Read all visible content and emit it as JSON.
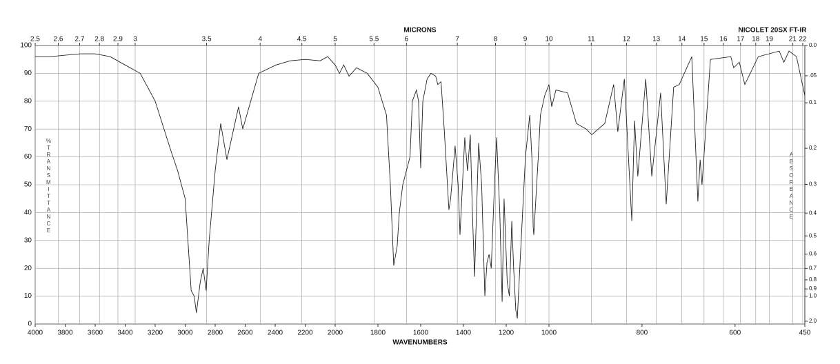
{
  "chart_data": {
    "type": "line",
    "title": "NICOLET 20SX FT-IR",
    "xlabel": "WAVENUMBERS",
    "x2label": "MICRONS",
    "ylabel": "%TRANSMITTANCE",
    "y2label": "ABSORBANCE",
    "color": "#222222",
    "grid": true,
    "xlim": [
      4000,
      450
    ],
    "xbreaks": [
      2000,
      1000
    ],
    "ylim": [
      0,
      100
    ],
    "xticks": [
      4000,
      3800,
      3600,
      3400,
      3200,
      3000,
      2800,
      2600,
      2400,
      2200,
      2000,
      1800,
      1600,
      1400,
      1200,
      1000,
      800,
      600,
      450
    ],
    "yticks": [
      0,
      10,
      20,
      30,
      40,
      50,
      60,
      70,
      80,
      90,
      100
    ],
    "x2ticks": [
      2.5,
      2.6,
      2.7,
      2.8,
      2.9,
      3,
      3.5,
      4,
      4.5,
      5,
      5.5,
      6,
      7,
      8,
      9,
      10,
      11,
      12,
      13,
      14,
      15,
      16,
      17,
      18,
      19,
      21,
      22
    ],
    "y2ticks": [
      {
        "value": 0,
        "label": "0.0"
      },
      {
        "value": 0.05,
        "label": ".05"
      },
      0.1,
      0.2,
      0.3,
      0.4,
      0.5,
      0.6,
      0.7,
      0.8,
      0.9,
      {
        "value": 1,
        "label": "1.0"
      },
      {
        "value": 2,
        "label": "2.0"
      }
    ],
    "x": [
      4000,
      3900,
      3800,
      3700,
      3600,
      3500,
      3400,
      3300,
      3200,
      3100,
      3050,
      3000,
      2960,
      2940,
      2925,
      2900,
      2880,
      2860,
      2840,
      2800,
      2763,
      2722,
      2644,
      2616,
      2510,
      2395,
      2300,
      2200,
      2100,
      2050,
      2000,
      1980,
      1960,
      1935,
      1900,
      1850,
      1800,
      1780,
      1760,
      1742,
      1726,
      1710,
      1700,
      1684,
      1650,
      1639,
      1620,
      1610,
      1600,
      1590,
      1570,
      1552,
      1530,
      1520,
      1505,
      1490,
      1468,
      1460,
      1439,
      1425,
      1416,
      1394,
      1381,
      1368,
      1358,
      1348,
      1329,
      1315,
      1300,
      1290,
      1280,
      1270,
      1255,
      1245,
      1230,
      1219,
      1210,
      1195,
      1185,
      1174,
      1165,
      1155,
      1148,
      1130,
      1110,
      1090,
      1080,
      1074,
      1071,
      1050,
      1040,
      1020,
      1000,
      994,
      985,
      960,
      941,
      920,
      908,
      880,
      861,
      852,
      838,
      822,
      816,
      809,
      792,
      779,
      760,
      748,
      732,
      720,
      693,
      680,
      675,
      671,
      653,
      609,
      603,
      591,
      579,
      550,
      505,
      495,
      484,
      468,
      450
    ],
    "values": [
      96,
      96,
      96.5,
      97,
      97,
      96,
      93,
      90,
      80,
      63,
      55,
      45,
      12,
      10,
      4,
      15,
      20,
      12,
      30,
      55,
      72,
      59,
      78,
      70,
      90,
      93,
      94.5,
      95,
      94.5,
      96,
      93,
      90,
      93,
      89,
      92,
      90,
      85,
      80,
      75,
      50,
      21,
      28,
      40,
      50,
      60,
      80,
      84,
      80,
      56,
      80,
      88,
      90,
      89,
      86,
      87,
      70,
      41,
      45,
      64,
      50,
      32,
      67,
      55,
      68,
      40,
      17,
      65,
      50,
      10,
      22,
      25,
      20,
      50,
      67,
      40,
      8,
      45,
      15,
      10,
      37,
      20,
      5,
      2,
      30,
      60,
      75,
      60,
      35,
      32,
      60,
      75,
      82,
      86,
      78,
      84,
      83,
      72,
      70,
      68,
      72,
      86,
      69,
      88,
      37,
      73,
      53,
      88,
      53,
      83,
      43,
      85,
      86,
      96,
      44,
      59,
      50,
      95,
      96,
      92,
      94,
      86,
      96,
      98,
      94,
      98,
      96,
      82
    ]
  }
}
